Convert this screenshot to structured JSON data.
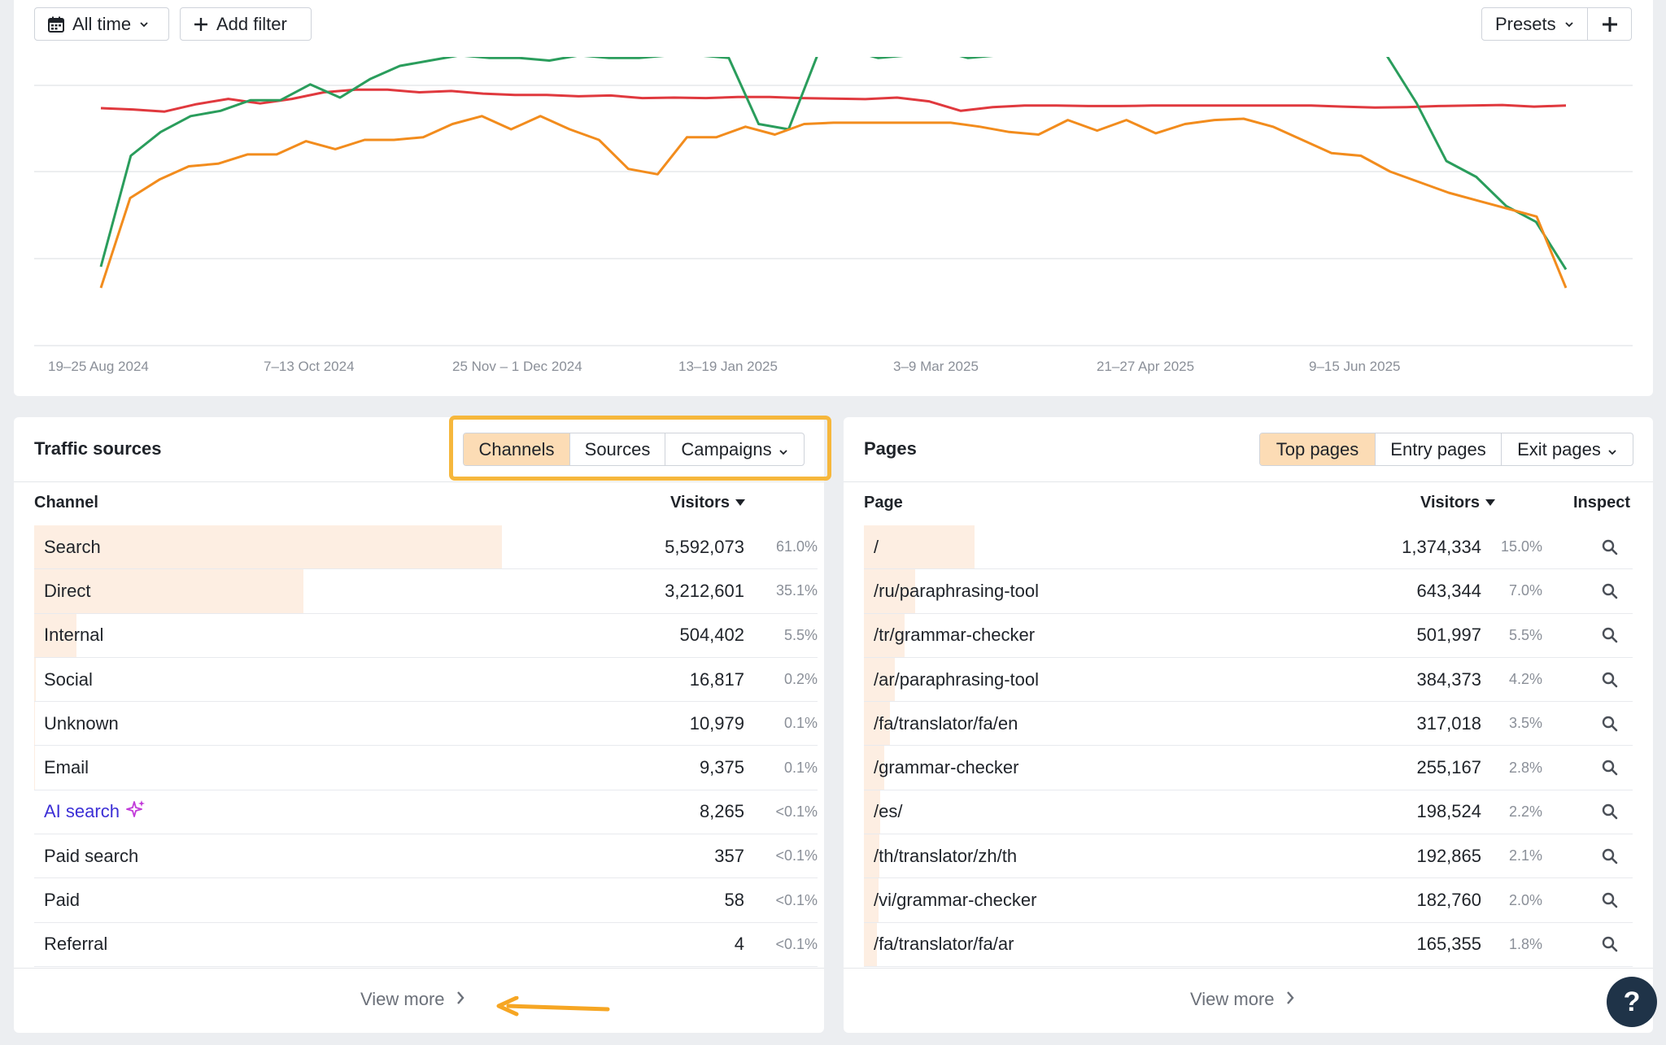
{
  "toolbar": {
    "all_time_label": "All time",
    "add_filter_label": "Add filter",
    "presets_label": "Presets",
    "plus_label": "+"
  },
  "chart_data": {
    "type": "line",
    "x_ticks": [
      "19–25 Aug 2024",
      "7–13 Oct 2024",
      "25 Nov – 1 Dec 2024",
      "13–19 Jan 2025",
      "3–9 Mar 2025",
      "21–27 Apr 2025",
      "9–15 Jun 2025"
    ],
    "grid": true,
    "series": [
      {
        "color": "#e0393e",
        "values": [
          100,
          99.5,
          98.7,
          101.5,
          103.5,
          101.8,
          103.5,
          106,
          107,
          107,
          106,
          106.5,
          105.5,
          105,
          105,
          104.5,
          104.8,
          103.8,
          104,
          103.8,
          104.2,
          104.2,
          103.8,
          103.6,
          103.4,
          104,
          102.6,
          99,
          100.4,
          101,
          101,
          100.8,
          100.8,
          101,
          101,
          101,
          101,
          101,
          101,
          100.6,
          100.2,
          100.4,
          100.8,
          101,
          101.2,
          100.6,
          101
        ]
      },
      {
        "color": "#2a9d5c",
        "values": [
          40,
          82,
          91,
          97,
          99,
          103,
          103,
          109,
          104,
          111,
          116,
          118,
          120,
          119,
          119,
          118,
          120,
          119,
          119,
          120,
          120,
          119,
          94,
          92,
          121,
          122,
          119,
          120,
          122,
          119,
          120,
          121,
          121,
          121,
          121,
          122,
          121,
          121,
          121,
          121,
          121,
          122,
          121,
          120,
          102,
          80,
          74,
          63,
          57,
          39
        ]
      },
      {
        "color": "#f28c1d",
        "values": [
          32,
          66,
          73,
          78,
          79,
          82.5,
          82.5,
          87.5,
          84.5,
          88,
          88,
          89,
          94,
          97,
          92,
          97,
          92,
          88,
          77,
          75,
          89,
          89,
          93,
          90,
          94,
          94.5,
          94.5,
          94.5,
          94.5,
          94.5,
          93,
          91,
          90,
          95.5,
          91.5,
          95.5,
          90.5,
          94,
          95.5,
          96,
          93,
          88,
          83,
          82,
          76,
          72,
          68,
          65,
          62,
          59,
          32
        ]
      }
    ]
  },
  "traffic": {
    "title": "Traffic sources",
    "tabs": {
      "channels": "Channels",
      "sources": "Sources",
      "campaigns": "Campaigns"
    },
    "col_channel": "Channel",
    "col_visitors": "Visitors",
    "view_more": "View more",
    "rows": [
      {
        "label": "Search",
        "visitors": "5,592,073",
        "pct": "61.0%",
        "share": 0.61
      },
      {
        "label": "Direct",
        "visitors": "3,212,601",
        "pct": "35.1%",
        "share": 0.351
      },
      {
        "label": "Internal",
        "visitors": "504,402",
        "pct": "5.5%",
        "share": 0.055
      },
      {
        "label": "Social",
        "visitors": "16,817",
        "pct": "0.2%",
        "share": 0.002
      },
      {
        "label": "Unknown",
        "visitors": "10,979",
        "pct": "0.1%",
        "share": 0.001
      },
      {
        "label": "Email",
        "visitors": "9,375",
        "pct": "0.1%",
        "share": 0.001
      },
      {
        "label": "AI search",
        "visitors": "8,265",
        "pct": "<0.1%",
        "share": 0
      },
      {
        "label": "Paid search",
        "visitors": "357",
        "pct": "<0.1%",
        "share": 0
      },
      {
        "label": "Paid",
        "visitors": "58",
        "pct": "<0.1%",
        "share": 0
      },
      {
        "label": "Referral",
        "visitors": "4",
        "pct": "<0.1%",
        "share": 0
      }
    ]
  },
  "pages": {
    "title": "Pages",
    "tabs": {
      "top": "Top pages",
      "entry": "Entry pages",
      "exit": "Exit pages"
    },
    "col_page": "Page",
    "col_visitors": "Visitors",
    "col_inspect": "Inspect",
    "view_more": "View more",
    "rows": [
      {
        "label": "/",
        "visitors": "1,374,334",
        "pct": "15.0%",
        "share": 0.15
      },
      {
        "label": "/ru/paraphrasing-tool",
        "visitors": "643,344",
        "pct": "7.0%",
        "share": 0.07
      },
      {
        "label": "/tr/grammar-checker",
        "visitors": "501,997",
        "pct": "5.5%",
        "share": 0.055
      },
      {
        "label": "/ar/paraphrasing-tool",
        "visitors": "384,373",
        "pct": "4.2%",
        "share": 0.042
      },
      {
        "label": "/fa/translator/fa/en",
        "visitors": "317,018",
        "pct": "3.5%",
        "share": 0.035
      },
      {
        "label": "/grammar-checker",
        "visitors": "255,167",
        "pct": "2.8%",
        "share": 0.028
      },
      {
        "label": "/es/",
        "visitors": "198,524",
        "pct": "2.2%",
        "share": 0.022
      },
      {
        "label": "/th/translator/zh/th",
        "visitors": "192,865",
        "pct": "2.1%",
        "share": 0.021
      },
      {
        "label": "/vi/grammar-checker",
        "visitors": "182,760",
        "pct": "2.0%",
        "share": 0.02
      },
      {
        "label": "/fa/translator/fa/ar",
        "visitors": "165,355",
        "pct": "1.8%",
        "share": 0.018
      }
    ]
  },
  "help": {
    "label": "?"
  },
  "colors": {
    "bar": "#fdeee2",
    "active_tab": "#fcdcb5",
    "highlight": "#f6b73c",
    "ai_text": "#3c2fd6",
    "sparkle": "#c13ad9"
  }
}
